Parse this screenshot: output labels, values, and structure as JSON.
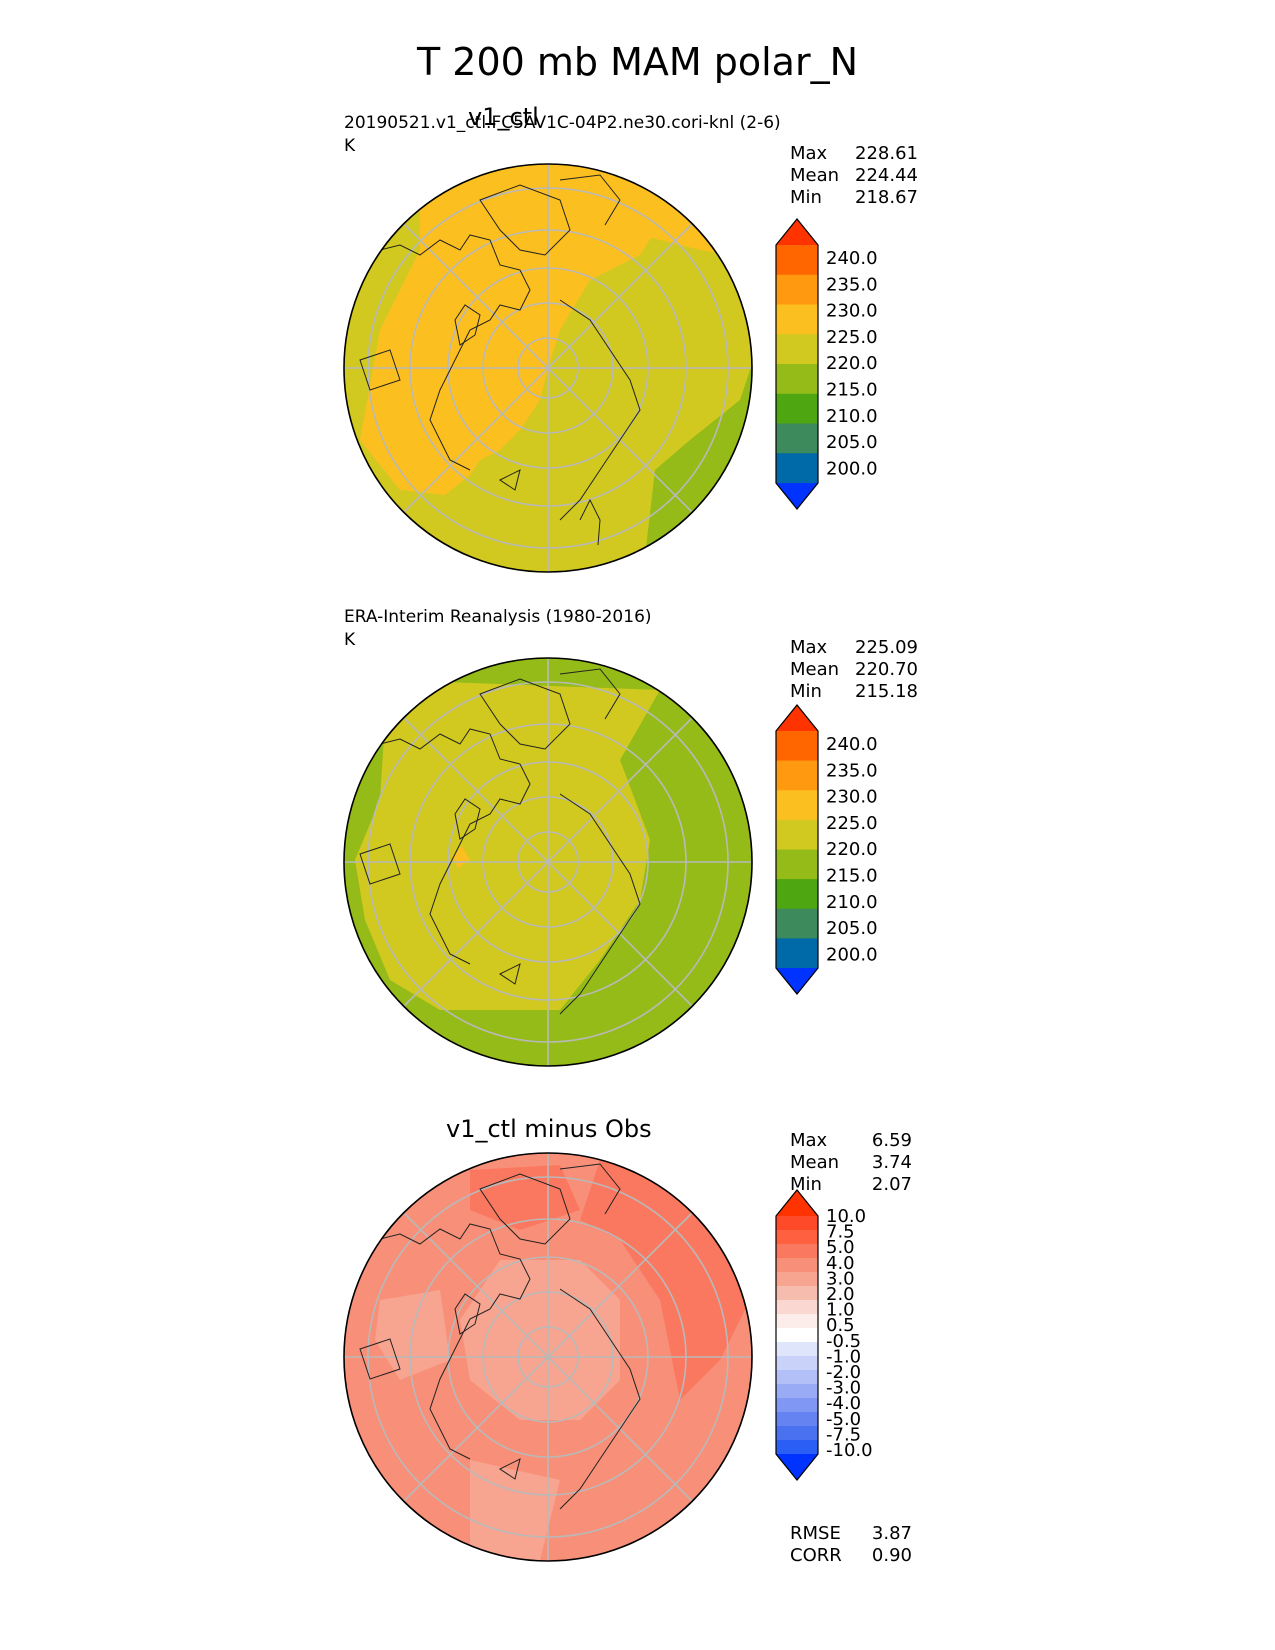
{
  "figure": {
    "title": "T 200 mb MAM polar_N"
  },
  "panels": [
    {
      "title": "v1_ctl",
      "name": "20190521.v1_ctl.FC5AV1C-04P2.ne30.cori-knl (2-6)",
      "units": "K",
      "stats": [
        {
          "label": "Max",
          "value": "228.61"
        },
        {
          "label": "Mean",
          "value": "224.44"
        },
        {
          "label": "Min",
          "value": "218.67"
        }
      ]
    },
    {
      "title": "",
      "name": "ERA-Interim Reanalysis (1980-2016)",
      "units": "K",
      "stats": [
        {
          "label": "Max",
          "value": "225.09"
        },
        {
          "label": "Mean",
          "value": "220.70"
        },
        {
          "label": "Min",
          "value": "215.18"
        }
      ]
    },
    {
      "title": "v1_ctl minus Obs",
      "name": "",
      "units": "",
      "stats": [
        {
          "label": "Max",
          "value": "6.59"
        },
        {
          "label": "Mean",
          "value": "3.74"
        },
        {
          "label": "Min",
          "value": "2.07"
        }
      ],
      "metrics": [
        {
          "label": "RMSE",
          "value": "3.87"
        },
        {
          "label": "CORR",
          "value": "0.90"
        }
      ]
    }
  ],
  "chart_data": [
    {
      "type": "heatmap",
      "projection": "north polar stereographic",
      "title": "v1_ctl",
      "units": "K",
      "colorbar": {
        "ticks": [
          "240.0",
          "235.0",
          "230.0",
          "225.0",
          "220.0",
          "215.0",
          "210.0",
          "205.0",
          "200.0"
        ],
        "colors": [
          "#ff3300",
          "#ff6600",
          "#ff9a10",
          "#fbbf20",
          "#d1c91f",
          "#95bb18",
          "#4ea610",
          "#3d8a5c",
          "#006aa8",
          "#0033ff"
        ],
        "extend": "both"
      },
      "regions": [
        {
          "region": "North Atlantic / western Europe sector",
          "range": [
            220,
            225
          ]
        },
        {
          "region": "North America / Pacific / Arctic Canada",
          "range": [
            225,
            230
          ]
        },
        {
          "region": "Europe / Siberia / Eurasia",
          "range": [
            220,
            225
          ]
        },
        {
          "region": "North Pacific edge near Kamchatka",
          "range": [
            225,
            230
          ]
        },
        {
          "region": "Edge at southern Eurasia / Atlantic margin",
          "range": [
            215,
            220
          ]
        }
      ]
    },
    {
      "type": "heatmap",
      "projection": "north polar stereographic",
      "title": "ERA-Interim Reanalysis (1980-2016)",
      "units": "K",
      "colorbar": {
        "ticks": [
          "240.0",
          "235.0",
          "230.0",
          "225.0",
          "220.0",
          "215.0",
          "210.0",
          "205.0",
          "200.0"
        ],
        "colors": [
          "#ff3300",
          "#ff6600",
          "#ff9a10",
          "#fbbf20",
          "#d1c91f",
          "#95bb18",
          "#4ea610",
          "#3d8a5c",
          "#006aa8",
          "#0033ff"
        ],
        "extend": "both"
      },
      "regions": [
        {
          "region": "Arctic interior and North America",
          "range": [
            220,
            225
          ]
        },
        {
          "region": "Eurasia outer ring / Siberia to Europe",
          "range": [
            215,
            220
          ]
        },
        {
          "region": "Pacific western edge",
          "range": [
            215,
            220
          ]
        },
        {
          "region": "Small patch near Canadian Arctic Archipelago",
          "range": [
            225,
            230
          ]
        }
      ]
    },
    {
      "type": "heatmap",
      "projection": "north polar stereographic",
      "title": "v1_ctl minus Obs",
      "units": "K",
      "colorbar": {
        "ticks": [
          "10.0",
          "7.5",
          "5.0",
          "4.0",
          "3.0",
          "2.0",
          "1.0",
          "0.5",
          "-0.5",
          "-1.0",
          "-2.0",
          "-3.0",
          "-4.0",
          "-5.0",
          "-7.5",
          "-10.0"
        ],
        "colors": [
          "#ff3300",
          "#ff4a2a",
          "#fe6040",
          "#fa7860",
          "#f88f78",
          "#f7a590",
          "#f6bcae",
          "#fad7d0",
          "#fcecea",
          "#ffffff",
          "#dfe5fb",
          "#c9d3fa",
          "#b2c0f7",
          "#99abf5",
          "#8097f3",
          "#6584f1",
          "#4a71f0",
          "#2a5ef5",
          "#0033ff"
        ],
        "extend": "both"
      },
      "regions": [
        {
          "region": "Arctic ocean core / Siberian coast",
          "range": [
            2,
            3
          ]
        },
        {
          "region": "Arctic Canada and Greenland",
          "range": [
            2,
            3
          ]
        },
        {
          "region": "North Pacific / Kamchatka ring",
          "range": [
            4,
            5
          ]
        },
        {
          "region": "Eurasian sector / Siberia",
          "range": [
            4,
            5
          ]
        },
        {
          "region": "Outer mid-latitudes",
          "range": [
            3,
            4
          ]
        }
      ]
    }
  ]
}
